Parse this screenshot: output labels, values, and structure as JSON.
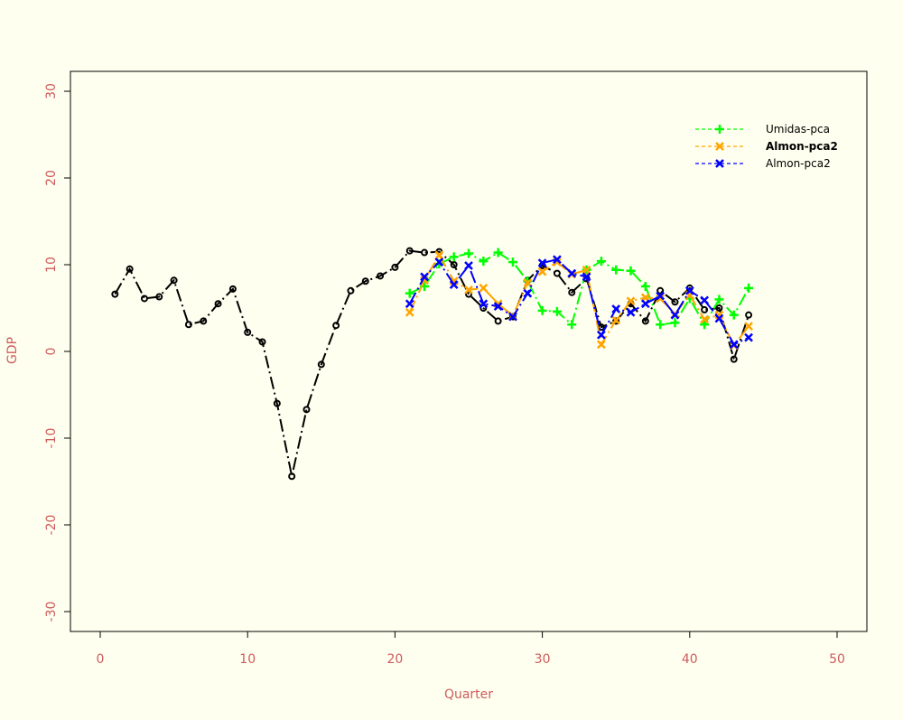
{
  "chart_data": {
    "type": "line",
    "xlabel": "Quarter",
    "ylabel": "GDP",
    "xlim": [
      0,
      50
    ],
    "ylim": [
      -30,
      30
    ],
    "xticks": [
      0,
      10,
      20,
      30,
      40,
      50
    ],
    "yticks": [
      -30,
      -20,
      -10,
      0,
      10,
      20,
      30
    ],
    "legend_position": "top-right",
    "colors": {
      "background": "#FFFFF0",
      "tick_labels": "#CD5C5C",
      "frame": "#000000"
    },
    "series": [
      {
        "name": "",
        "legend": false,
        "color": "#000000",
        "line": "dashed",
        "marker": "circle",
        "x": [
          1,
          2,
          3,
          4,
          5,
          6,
          7,
          8,
          9,
          10,
          11,
          12,
          13,
          14,
          15,
          16,
          17,
          18,
          19,
          20,
          21,
          22,
          23,
          24,
          25,
          26,
          27,
          28,
          29,
          30,
          31,
          32,
          33,
          34,
          35,
          36,
          37,
          38,
          39,
          40,
          41,
          42,
          43,
          44
        ],
        "y": [
          6.6,
          9.5,
          6.1,
          6.3,
          8.2,
          3.1,
          3.5,
          5.5,
          7.2,
          2.2,
          1.1,
          -6.0,
          -14.4,
          -6.7,
          -1.5,
          3.0,
          7.0,
          8.1,
          8.7,
          9.7,
          11.6,
          11.4,
          11.5,
          10.0,
          6.6,
          5.0,
          3.5,
          4.0,
          8.2,
          9.9,
          9.0,
          6.8,
          8.4,
          2.8,
          3.5,
          5.5,
          3.5,
          7.0,
          5.7,
          7.3,
          4.8,
          5.0,
          -0.9,
          4.2
        ]
      },
      {
        "name": "Umidas-pca",
        "legend": true,
        "color": "#00FF00",
        "line": "dashed",
        "marker": "plus",
        "x": [
          21,
          22,
          23,
          24,
          25,
          26,
          27,
          28,
          29,
          30,
          31,
          32,
          33,
          34,
          35,
          36,
          37,
          38,
          39,
          40,
          41,
          42,
          43,
          44
        ],
        "y": [
          6.7,
          7.5,
          10.1,
          10.9,
          11.3,
          10.4,
          11.4,
          10.3,
          8.1,
          4.7,
          4.6,
          3.1,
          9.4,
          10.4,
          9.4,
          9.3,
          7.5,
          3.1,
          3.3,
          6.1,
          3.1,
          6.0,
          4.2,
          7.3
        ]
      },
      {
        "name": "Almon-pca2",
        "legend": true,
        "legend_bold": true,
        "color": "#FFA500",
        "line": "dashed",
        "marker": "cross",
        "x": [
          21,
          22,
          23,
          24,
          25,
          26,
          27,
          28,
          29,
          30,
          31,
          32,
          33,
          34,
          35,
          36,
          37,
          38,
          39,
          40,
          41,
          42,
          43,
          44
        ],
        "y": [
          4.5,
          8.2,
          11.1,
          8.1,
          7.1,
          7.3,
          5.5,
          4.1,
          7.9,
          9.2,
          10.3,
          8.9,
          9.4,
          0.8,
          3.6,
          5.8,
          6.2,
          6.1,
          4.3,
          6.5,
          3.7,
          4.2,
          0.7,
          2.9
        ]
      },
      {
        "name": "Almon-pca2",
        "legend": true,
        "color": "#0000FF",
        "line": "dashed",
        "marker": "cross",
        "x": [
          21,
          22,
          23,
          24,
          25,
          26,
          27,
          28,
          29,
          30,
          31,
          32,
          33,
          34,
          35,
          36,
          37,
          38,
          39,
          40,
          41,
          42,
          43,
          44
        ],
        "y": [
          5.5,
          8.6,
          10.3,
          7.7,
          9.9,
          5.5,
          5.2,
          4.0,
          6.7,
          10.2,
          10.6,
          9.0,
          8.6,
          1.9,
          4.9,
          4.5,
          5.5,
          6.4,
          4.2,
          7.0,
          5.9,
          3.8,
          0.8,
          1.6
        ]
      }
    ]
  }
}
